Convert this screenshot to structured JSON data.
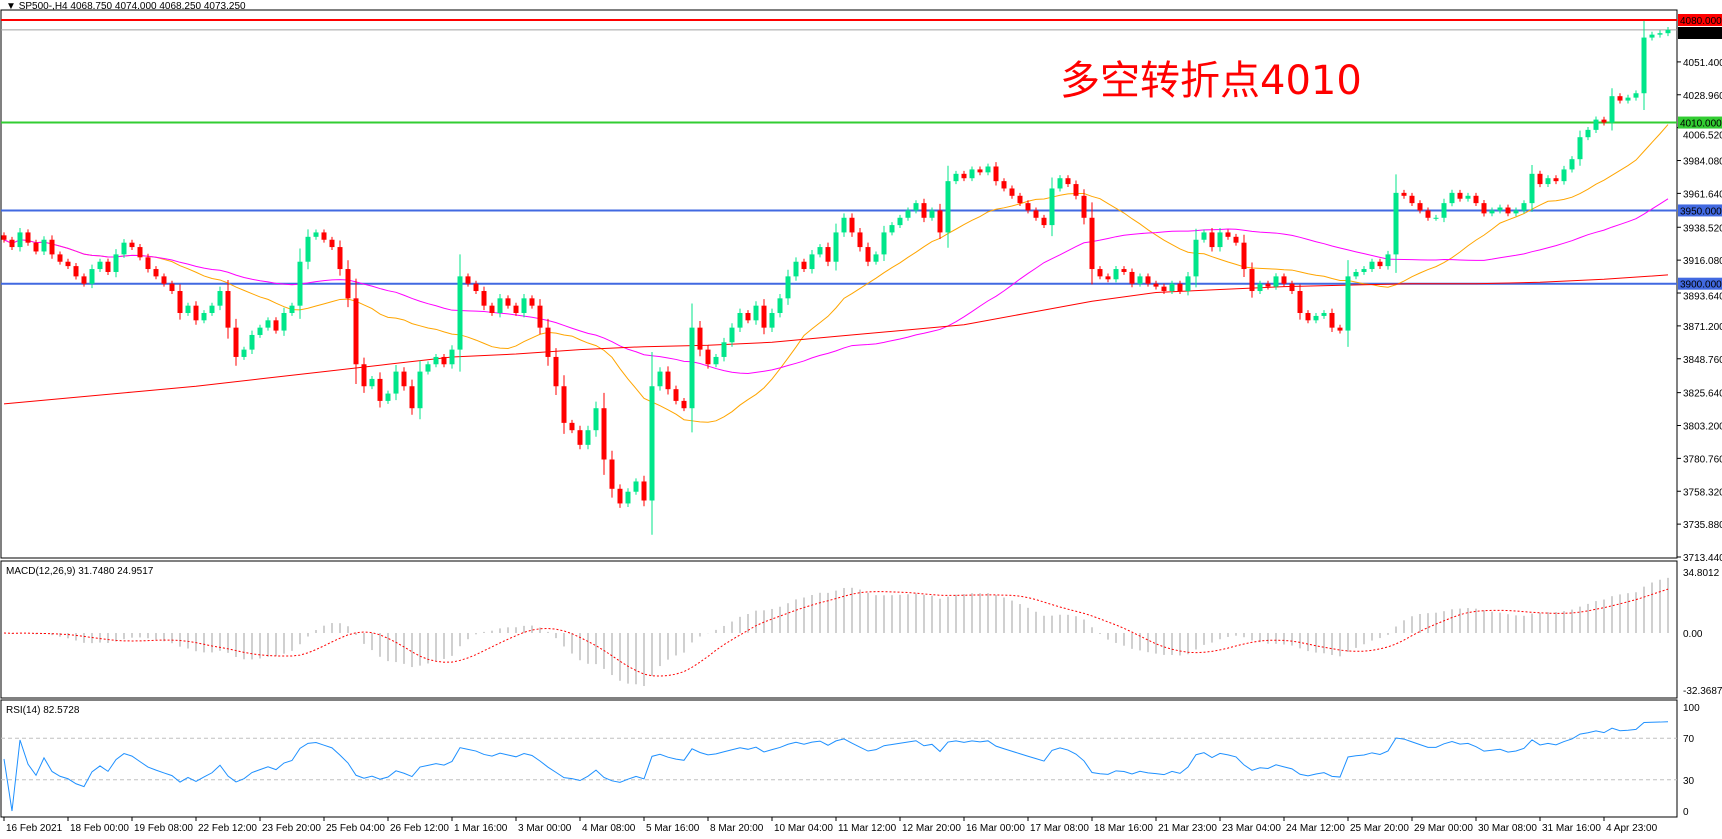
{
  "header": {
    "symbol": "SP500-,H4",
    "ohlc_text": "4068.750 4074.000 4068.250 4073.250",
    "menu_icon": "triangle-down-icon"
  },
  "annotation": {
    "text": "多空转折点4010",
    "color": "#ff0000"
  },
  "colors": {
    "bull": "#00e68a",
    "bear": "#ff0000",
    "ma_fast": "#ffa500",
    "ma_mid": "#ff00ff",
    "ma_long": "#ff0000",
    "macd_hist": "#c0c0c0",
    "macd_signal": "#ff0000",
    "rsi": "#1e90ff"
  },
  "chart_data": [
    {
      "type": "candlestick",
      "title": "SP500-,H4",
      "ylim": [
        3713.44,
        4080.0
      ],
      "y_ticks": [
        "4051.400",
        "4028.960",
        "4006.520",
        "3984.080",
        "3961.640",
        "3938.520",
        "3916.080",
        "3893.640",
        "3871.200",
        "3848.760",
        "3825.640",
        "3803.200",
        "3780.760",
        "3758.320",
        "3735.880",
        "3713.440"
      ],
      "x_labels": [
        "16 Feb 2021",
        "18 Feb 00:00",
        "19 Feb 08:00",
        "22 Feb 12:00",
        "23 Feb 20:00",
        "25 Feb 04:00",
        "26 Feb 12:00",
        "1 Mar 16:00",
        "3 Mar 00:00",
        "4 Mar 08:00",
        "5 Mar 16:00",
        "8 Mar 20:00",
        "10 Mar 04:00",
        "11 Mar 12:00",
        "12 Mar 20:00",
        "16 Mar 00:00",
        "17 Mar 08:00",
        "18 Mar 16:00",
        "21 Mar 23:00",
        "23 Mar 04:00",
        "24 Mar 12:00",
        "25 Mar 20:00",
        "29 Mar 00:00",
        "30 Mar 08:00",
        "31 Mar 16:00",
        "4 Apr 23:00"
      ],
      "close": [
        3930,
        3925,
        3935,
        3928,
        3922,
        3930,
        3920,
        3915,
        3912,
        3905,
        3900,
        3910,
        3915,
        3908,
        3920,
        3928,
        3925,
        3918,
        3910,
        3905,
        3900,
        3895,
        3880,
        3885,
        3875,
        3880,
        3885,
        3895,
        3870,
        3850,
        3855,
        3865,
        3870,
        3875,
        3868,
        3880,
        3885,
        3915,
        3932,
        3935,
        3930,
        3925,
        3910,
        3890,
        3845,
        3830,
        3835,
        3820,
        3825,
        3840,
        3830,
        3815,
        3840,
        3845,
        3850,
        3845,
        3855,
        3905,
        3900,
        3895,
        3885,
        3880,
        3890,
        3885,
        3880,
        3890,
        3885,
        3870,
        3850,
        3830,
        3805,
        3800,
        3790,
        3800,
        3815,
        3780,
        3760,
        3750,
        3758,
        3765,
        3752,
        3830,
        3840,
        3828,
        3820,
        3815,
        3870,
        3855,
        3845,
        3850,
        3860,
        3870,
        3880,
        3875,
        3885,
        3870,
        3880,
        3890,
        3905,
        3915,
        3910,
        3920,
        3925,
        3915,
        3935,
        3945,
        3935,
        3925,
        3915,
        3920,
        3935,
        3940,
        3945,
        3950,
        3955,
        3945,
        3950,
        3935,
        3970,
        3975,
        3972,
        3978,
        3976,
        3980,
        3970,
        3965,
        3960,
        3955,
        3950,
        3945,
        3940,
        3965,
        3972,
        3968,
        3960,
        3945,
        3910,
        3905,
        3903,
        3910,
        3908,
        3900,
        3905,
        3900,
        3898,
        3895,
        3900,
        3895,
        3905,
        3930,
        3935,
        3925,
        3935,
        3932,
        3928,
        3910,
        3895,
        3900,
        3898,
        3905,
        3900,
        3895,
        3880,
        3875,
        3878,
        3880,
        3870,
        3868,
        3905,
        3908,
        3910,
        3915,
        3912,
        3920,
        3962,
        3960,
        3955,
        3950,
        3945,
        3945,
        3955,
        3962,
        3958,
        3960,
        3955,
        3948,
        3950,
        3952,
        3948,
        3950,
        3955,
        3975,
        3968,
        3972,
        3970,
        3978,
        3985,
        4000,
        4005,
        4012,
        4010,
        4028,
        4025,
        4027,
        4030,
        4068,
        4070,
        4071,
        4073.25
      ],
      "moving_averages": [
        {
          "type": "SMA",
          "period": 20,
          "color": "#ffa500"
        },
        {
          "type": "SMA",
          "period": 50,
          "color": "#ff00ff"
        },
        {
          "type": "long",
          "color": "#ff0000",
          "values_at_x_labels": [
            3818,
            3822,
            3826,
            3830,
            3835,
            3840,
            3845,
            3850,
            3852,
            3855,
            3857,
            3858,
            3860,
            3864,
            3868,
            3872,
            3880,
            3888,
            3894,
            3896,
            3898,
            3899,
            3900,
            3900,
            3901,
            3903
          ],
          "last": 3906
        }
      ],
      "hlines": [
        {
          "price": 4080.0,
          "label": "4080.000",
          "color": "#ff0000"
        },
        {
          "price": 4073.25,
          "label": "4073.250",
          "color": "#a0a0a0",
          "tag_color": "#000000"
        },
        {
          "price": 4010.0,
          "label": "4010.000",
          "color": "#32cd32"
        },
        {
          "price": 3950.0,
          "label": "3950.000",
          "color": "#4169e1"
        },
        {
          "price": 3900.0,
          "label": "3900.000",
          "color": "#4169e1"
        }
      ]
    },
    {
      "type": "macd",
      "label": "MACD(12,26,9) 31.7480 24.9517",
      "params": [
        12,
        26,
        9
      ],
      "ylim": [
        -32.3687,
        34.8012
      ],
      "y_ticks": [
        "34.8012",
        "0.00",
        "-32.3687"
      ]
    },
    {
      "type": "rsi",
      "label": "RSI(14) 82.5728",
      "period": 14,
      "ylim": [
        0,
        100
      ],
      "levels": [
        30,
        70
      ],
      "y_ticks": [
        "100",
        "70",
        "30",
        "0"
      ]
    }
  ]
}
